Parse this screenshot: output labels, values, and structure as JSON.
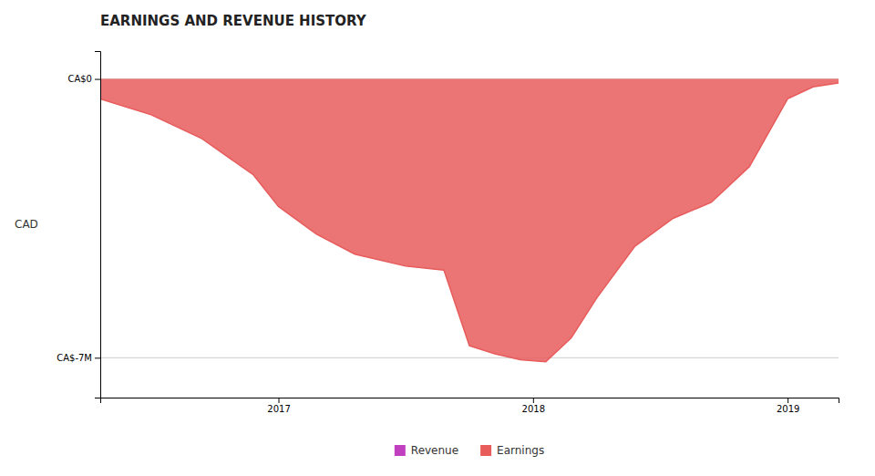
{
  "chart_data": {
    "type": "area",
    "title": "EARNINGS AND REVENUE HISTORY",
    "y_label": "CAD",
    "x": [
      2016.3,
      2016.5,
      2016.7,
      2016.9,
      2017.0,
      2017.15,
      2017.3,
      2017.5,
      2017.65,
      2017.75,
      2017.85,
      2017.95,
      2018.05,
      2018.15,
      2018.25,
      2018.4,
      2018.55,
      2018.7,
      2018.85,
      2019.0,
      2019.1,
      2019.2
    ],
    "series": [
      {
        "name": "Revenue",
        "color": "#c040c0",
        "values": [
          null,
          null,
          null,
          null,
          null,
          null,
          null,
          null,
          null,
          null,
          null,
          null,
          null,
          null,
          null,
          null,
          null,
          null,
          null,
          null,
          null,
          null
        ]
      },
      {
        "name": "Earnings",
        "color": "#e85c5c",
        "values": [
          -500000,
          -900000,
          -1500000,
          -2400000,
          -3200000,
          -3900000,
          -4400000,
          -4700000,
          -4800000,
          -6700000,
          -6900000,
          -7050000,
          -7100000,
          -6500000,
          -5500000,
          -4200000,
          -3500000,
          -3100000,
          -2200000,
          -500000,
          -200000,
          -100000
        ]
      }
    ],
    "xlim": [
      2016.3,
      2019.2
    ],
    "xticks": [
      2017,
      2018,
      2019
    ],
    "ylim": [
      -8000000,
      700000
    ],
    "yticks": [
      {
        "value": 0,
        "label": "CA$0"
      },
      {
        "value": -7000000,
        "label": "CA$-7M"
      }
    ],
    "grid": true,
    "legend": "bottom"
  }
}
